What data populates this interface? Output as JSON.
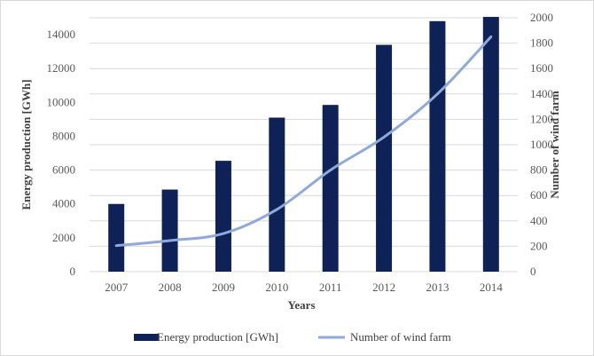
{
  "chart_data": {
    "type": "bar+line",
    "categories": [
      "2007",
      "2008",
      "2009",
      "2010",
      "2011",
      "2012",
      "2013",
      "2014"
    ],
    "series": [
      {
        "name": "Energy production [GWh]",
        "type": "bar",
        "axis": "left",
        "color": "#0f2257",
        "values": [
          4000,
          4850,
          6550,
          9100,
          9850,
          13400,
          14800,
          15050
        ]
      },
      {
        "name": "Number of wind farm",
        "type": "line",
        "axis": "right",
        "color": "#8ea9db",
        "values": [
          205,
          245,
          300,
          490,
          800,
          1060,
          1400,
          1850
        ]
      }
    ],
    "xlabel": "Years",
    "ylabel_left": "Energy production [GWh]",
    "ylabel_right": "Number of wind  farm",
    "ylim_left": [
      0,
      15000
    ],
    "yticks_left": [
      0,
      2000,
      4000,
      6000,
      8000,
      10000,
      12000,
      14000
    ],
    "ylim_right": [
      0,
      2000
    ],
    "yticks_right": [
      0,
      200,
      400,
      600,
      800,
      1000,
      1200,
      1400,
      1600,
      1800,
      2000
    ],
    "grid": "horizontal",
    "gridline_color": "#d9d9d9",
    "legend_position": "bottom"
  }
}
